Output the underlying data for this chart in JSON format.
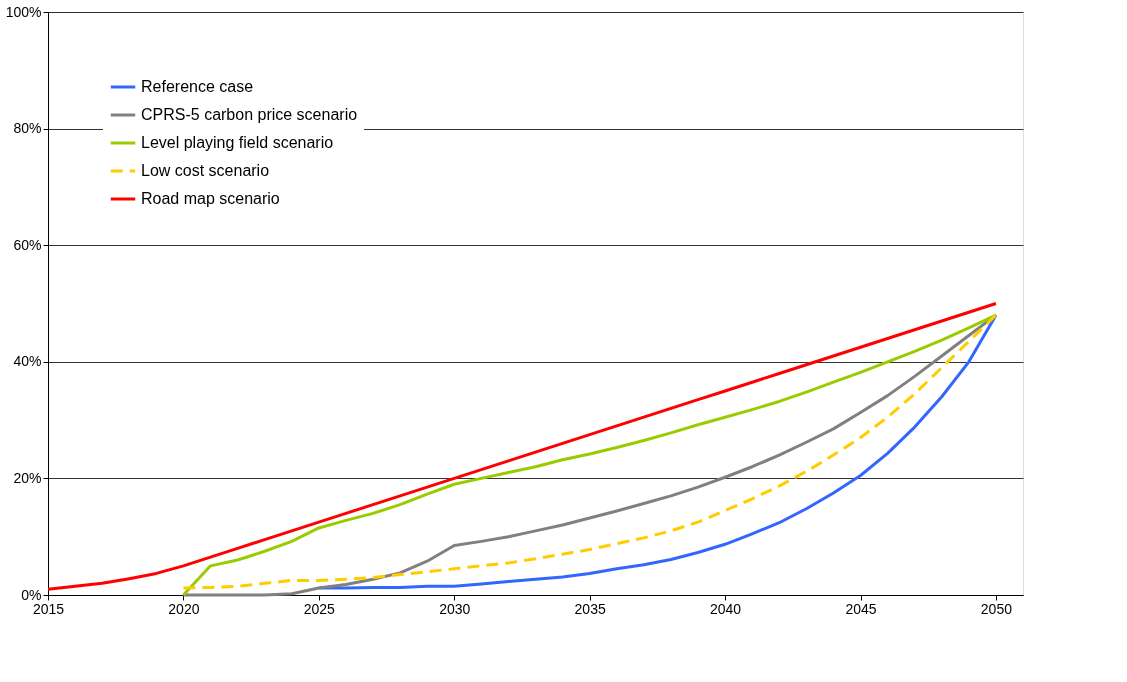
{
  "chart_data": {
    "type": "line",
    "xlim": [
      2015,
      2051
    ],
    "xticks": [
      2015,
      2020,
      2025,
      2030,
      2035,
      2040,
      2045,
      2050
    ],
    "ylim": [
      0,
      100
    ],
    "yticks": [
      {
        "value": 0,
        "label": "0%"
      },
      {
        "value": 20,
        "label": "20%"
      },
      {
        "value": 40,
        "label": "40%"
      },
      {
        "value": 60,
        "label": "60%"
      },
      {
        "value": 80,
        "label": "80%"
      },
      {
        "value": 100,
        "label": "100%"
      }
    ],
    "grid": "y",
    "legend": "top left",
    "marker": "none",
    "series": [
      {
        "name": "Reference case",
        "color": "#3366ff",
        "line_style": "solid",
        "x": [
          2025,
          2026,
          2027,
          2028,
          2029,
          2030,
          2031,
          2032,
          2033,
          2034,
          2035,
          2036,
          2037,
          2038,
          2039,
          2040,
          2041,
          2042,
          2043,
          2044,
          2045,
          2046,
          2047,
          2048,
          2049,
          2050
        ],
        "values": [
          1.2,
          1.2,
          1.3,
          1.3,
          1.5,
          1.5,
          1.9,
          2.3,
          2.7,
          3.1,
          3.7,
          4.5,
          5.2,
          6.1,
          7.3,
          8.7,
          10.5,
          12.4,
          14.8,
          17.5,
          20.5,
          24.3,
          28.8,
          34,
          40,
          48
        ]
      },
      {
        "name": "CPRS-5 carbon price scenario",
        "color": "#808080",
        "line_style": "solid",
        "x": [
          2020,
          2021,
          2022,
          2023,
          2024,
          2025,
          2026,
          2027,
          2028,
          2029,
          2030,
          2031,
          2032,
          2033,
          2034,
          2035,
          2036,
          2037,
          2038,
          2039,
          2040,
          2041,
          2042,
          2043,
          2044,
          2045,
          2046,
          2047,
          2048,
          2049,
          2050
        ],
        "values": [
          0,
          0,
          0,
          0,
          0.2,
          1.2,
          1.8,
          2.7,
          3.8,
          5.8,
          8.5,
          9.2,
          10,
          11,
          12,
          13.2,
          14.4,
          15.7,
          17,
          18.5,
          20.2,
          22,
          24,
          26.2,
          28.5,
          31.3,
          34.2,
          37.5,
          41,
          44.5,
          48
        ]
      },
      {
        "name": "Level playing field scenario",
        "color": "#99cc00",
        "line_style": "solid",
        "x": [
          2020,
          2021,
          2022,
          2023,
          2024,
          2025,
          2026,
          2027,
          2028,
          2029,
          2030,
          2031,
          2032,
          2033,
          2034,
          2035,
          2036,
          2037,
          2038,
          2039,
          2040,
          2041,
          2042,
          2043,
          2044,
          2045,
          2046,
          2047,
          2048,
          2049,
          2050
        ],
        "values": [
          0,
          5,
          6,
          7.5,
          9.2,
          11.5,
          12.8,
          14,
          15.5,
          17.3,
          19,
          20,
          21,
          22,
          23.2,
          24.2,
          25.3,
          26.5,
          27.8,
          29.2,
          30.5,
          31.8,
          33.2,
          34.8,
          36.5,
          38.2,
          40,
          41.8,
          43.7,
          45.8,
          48
        ]
      },
      {
        "name": "Low cost scenario",
        "color": "#ffcc00",
        "line_style": "dashed",
        "x": [
          2020,
          2021,
          2022,
          2023,
          2024,
          2025,
          2026,
          2027,
          2028,
          2029,
          2030,
          2031,
          2032,
          2033,
          2034,
          2035,
          2036,
          2037,
          2038,
          2039,
          2040,
          2041,
          2042,
          2043,
          2044,
          2045,
          2046,
          2047,
          2048,
          2049,
          2050
        ],
        "values": [
          1.2,
          1.3,
          1.5,
          2,
          2.5,
          2.5,
          2.7,
          3,
          3.5,
          4,
          4.5,
          5,
          5.5,
          6.2,
          7,
          7.8,
          8.8,
          9.8,
          11,
          12.5,
          14.5,
          16.5,
          18.7,
          21.2,
          24,
          27,
          30.5,
          34.5,
          39,
          43.5,
          48
        ]
      },
      {
        "name": "Road map scenario",
        "color": "#ff0000",
        "line_style": "solid",
        "x": [
          2015,
          2016,
          2017,
          2018,
          2019,
          2020,
          2021,
          2022,
          2023,
          2024,
          2025,
          2026,
          2027,
          2028,
          2029,
          2030,
          2031,
          2032,
          2033,
          2034,
          2035,
          2036,
          2037,
          2038,
          2039,
          2040,
          2041,
          2042,
          2043,
          2044,
          2045,
          2046,
          2047,
          2048,
          2049,
          2050
        ],
        "values": [
          1,
          1.5,
          2,
          2.8,
          3.7,
          5,
          6.5,
          8,
          9.5,
          11,
          12.5,
          14,
          15.5,
          17,
          18.5,
          20,
          21.5,
          23,
          24.5,
          26,
          27.5,
          29,
          30.5,
          32,
          33.5,
          35,
          36.5,
          38,
          39.5,
          41,
          42.5,
          44,
          45.5,
          47,
          48.5,
          50
        ]
      }
    ]
  }
}
